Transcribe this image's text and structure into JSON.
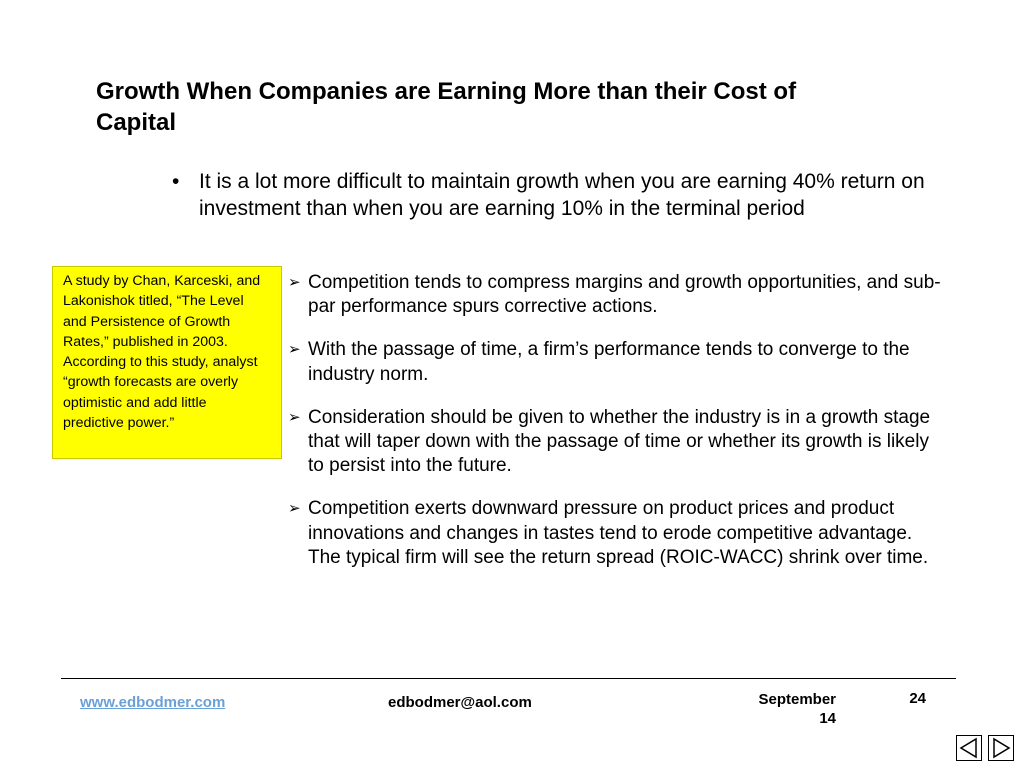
{
  "slide": {
    "title": "Growth When Companies are Earning More than their Cost of Capital",
    "main_bullet": {
      "marker": "•",
      "text": "It is a lot more difficult to maintain growth when you are earning 40% return on investment than when you are earning 10% in the terminal period"
    },
    "callout": {
      "text": "A study by Chan, Karceski, and Lakonishok titled, “The Level and Persistence of Growth Rates,” published in 2003.  According to this study, analyst “growth forecasts are overly optimistic and add little predictive power.”",
      "background": "#ffff00"
    },
    "sub_bullets": [
      {
        "marker": "➢",
        "text": "Competition tends to compress margins and growth opportunities, and sub-par performance spurs corrective actions."
      },
      {
        "marker": "➢",
        "text": "With the passage of time, a firm’s performance tends to converge to the industry norm."
      },
      {
        "marker": "➢",
        "text": "Consideration should be given to whether the industry is in a growth stage that will taper down with the passage of time or whether its growth is likely to persist into the future."
      },
      {
        "marker": "➢",
        "text": "Competition exerts downward pressure on product prices and product innovations and changes in tastes tend to erode competitive advantage.  The typical firm will see the return spread (ROIC-WACC) shrink over time."
      }
    ]
  },
  "footer": {
    "website": "www.edbodmer.com",
    "website_color": "#6aa0d8",
    "email": "edbodmer@aol.com",
    "date_line1": "September",
    "date_line2": "14",
    "page_number": "24"
  },
  "navigation": {
    "prev_icon": "triangle-left-icon",
    "next_icon": "triangle-right-icon"
  }
}
